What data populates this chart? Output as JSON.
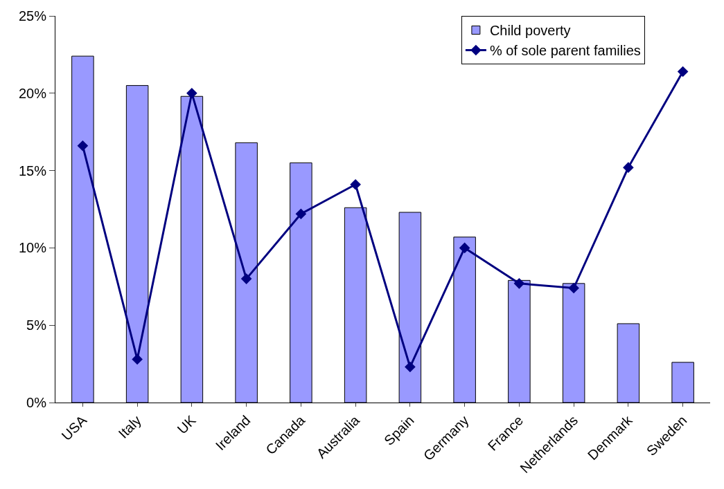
{
  "chart_data": {
    "type": "bar",
    "categories": [
      "USA",
      "Italy",
      "UK",
      "Ireland",
      "Canada",
      "Australia",
      "Spain",
      "Germany",
      "France",
      "Netherlands",
      "Denmark",
      "Sweden"
    ],
    "series": [
      {
        "name": "Child poverty",
        "color": "#9999ff",
        "values": [
          22.4,
          20.5,
          19.8,
          16.8,
          15.5,
          12.6,
          12.3,
          10.7,
          7.9,
          7.7,
          5.1,
          2.6
        ]
      },
      {
        "name": "% of sole parent families",
        "type": "line",
        "color": "#000080",
        "marker": "diamond",
        "values": [
          16.6,
          2.8,
          20.0,
          8.0,
          12.2,
          14.1,
          2.3,
          10.0,
          7.7,
          7.4,
          15.2,
          21.4
        ]
      }
    ],
    "ylim": [
      0,
      25
    ],
    "yticks": [
      {
        "value": 0,
        "label": "0%"
      },
      {
        "value": 5,
        "label": "5%"
      },
      {
        "value": 10,
        "label": "10%"
      },
      {
        "value": 15,
        "label": "15%"
      },
      {
        "value": 20,
        "label": "20%"
      },
      {
        "value": 25,
        "label": "25%"
      }
    ],
    "legend": "top right"
  }
}
